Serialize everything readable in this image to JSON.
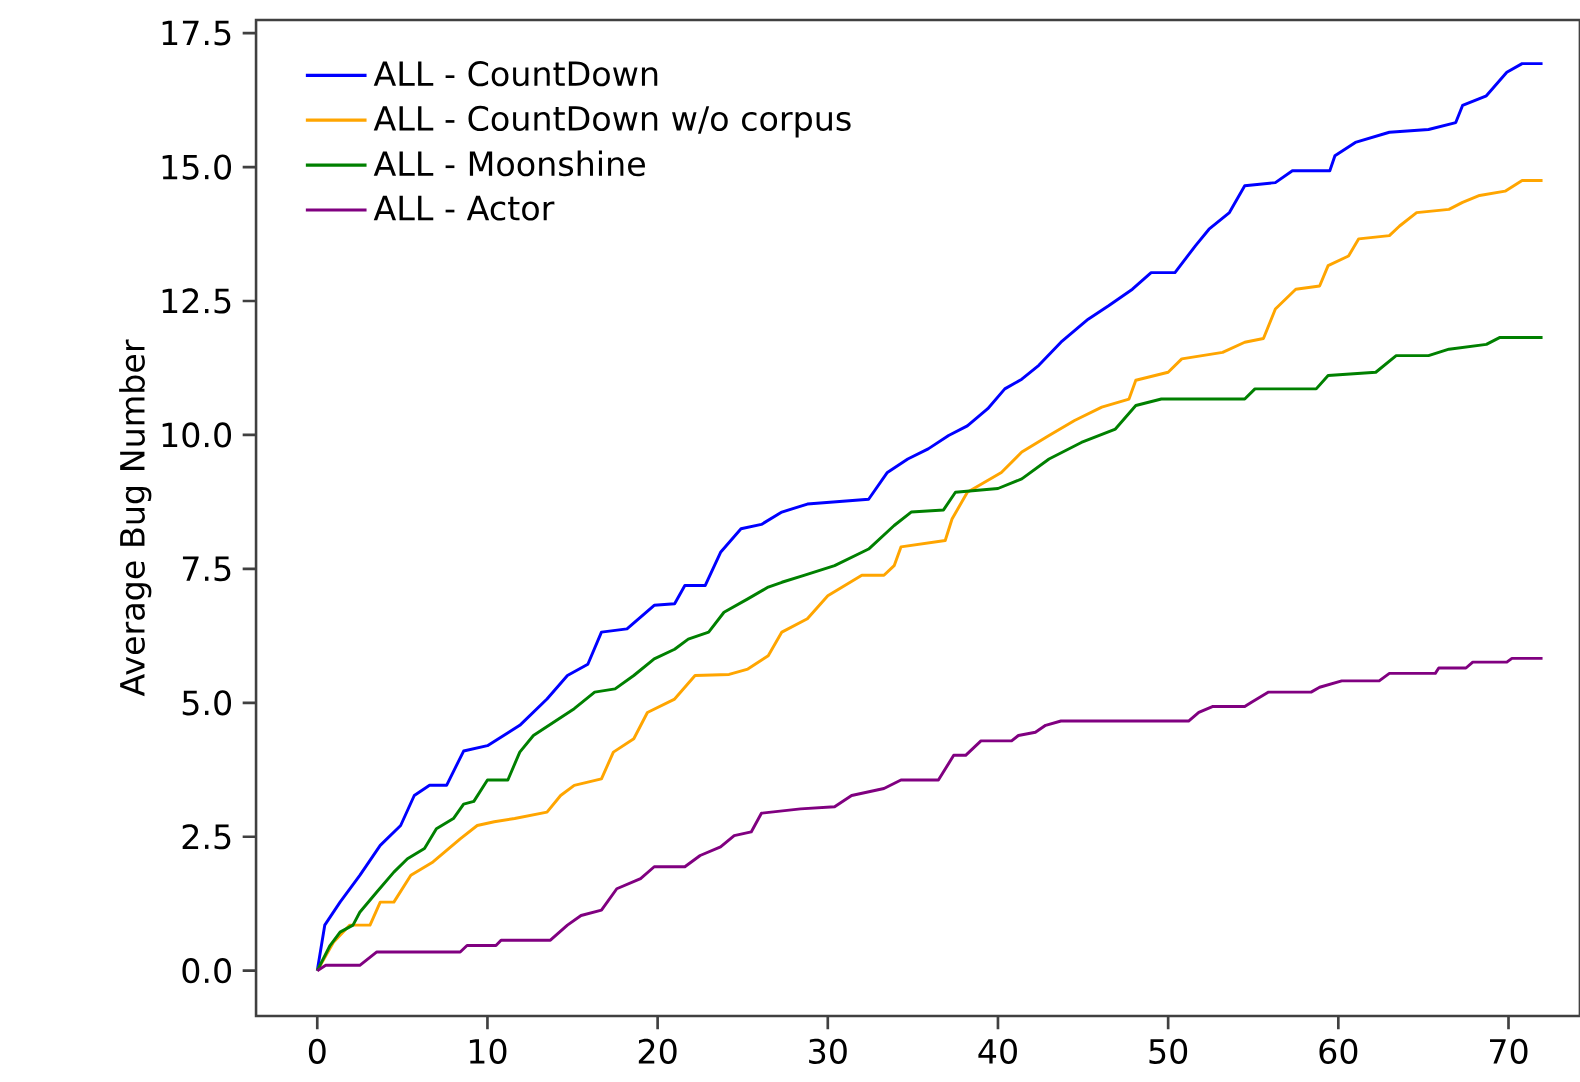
{
  "chart_data": {
    "type": "line",
    "ylabel": "Average Bug Number",
    "legend": "top left",
    "xlim": [
      -3.6,
      74.2
    ],
    "ylim": [
      -0.845,
      17.745
    ],
    "xticks": [
      0,
      10,
      20,
      30,
      40,
      50,
      60,
      70
    ],
    "yticks": [
      {
        "value": 0,
        "label": "0.0"
      },
      {
        "value": 2.5,
        "label": "2.5"
      },
      {
        "value": 5,
        "label": "5.0"
      },
      {
        "value": 7.5,
        "label": "7.5"
      },
      {
        "value": 10,
        "label": "10.0"
      },
      {
        "value": 12.5,
        "label": "12.5"
      },
      {
        "value": 15,
        "label": "15.0"
      },
      {
        "value": 17.5,
        "label": "17.5"
      }
    ],
    "series": [
      {
        "name": "ALL - CountDown",
        "color": "#0000ff",
        "x": [
          0,
          0.44,
          1.34,
          2.5,
          3.7,
          4.9,
          5.7,
          6.6,
          7.6,
          8.6,
          10,
          11.9,
          13.5,
          14.7,
          15.9,
          16.7,
          18.2,
          19.8,
          21,
          21.6,
          22.8,
          23.7,
          24.9,
          26.1,
          27.3,
          28.8,
          32.4,
          33.5,
          34.7,
          35.9,
          37.1,
          38.2,
          39.4,
          40.4,
          41.4,
          42.4,
          43.7,
          45.3,
          46.5,
          47.9,
          49,
          50.4,
          51.6,
          52.4,
          53.6,
          54.5,
          56.3,
          57.3,
          59.5,
          59.8,
          61,
          63,
          65.3,
          66.9,
          67.3,
          68.7,
          69.9,
          70.8,
          72
        ],
        "values": [
          0,
          0.85,
          1.28,
          1.78,
          2.34,
          2.71,
          3.27,
          3.46,
          3.46,
          4.1,
          4.2,
          4.58,
          5.07,
          5.51,
          5.72,
          6.32,
          6.38,
          6.82,
          6.85,
          7.19,
          7.19,
          7.81,
          8.25,
          8.33,
          8.56,
          8.71,
          8.8,
          9.3,
          9.55,
          9.74,
          9.99,
          10.17,
          10.49,
          10.86,
          11.04,
          11.3,
          11.73,
          12.16,
          12.41,
          12.72,
          13.03,
          13.03,
          13.53,
          13.84,
          14.15,
          14.65,
          14.71,
          14.93,
          14.93,
          15.21,
          15.46,
          15.65,
          15.7,
          15.83,
          16.15,
          16.33,
          16.77,
          16.93,
          16.93
        ]
      },
      {
        "name": "ALL - CountDown w/o corpus",
        "color": "#ffa500",
        "x": [
          0,
          0.95,
          1.9,
          3.1,
          3.7,
          4.5,
          5.5,
          6.8,
          8.4,
          9.4,
          10.4,
          11.6,
          13.5,
          14.3,
          15.1,
          16.7,
          17.4,
          18.6,
          19.4,
          21,
          22.2,
          24.2,
          25.3,
          26.5,
          27.3,
          28.8,
          30,
          32,
          33.3,
          33.9,
          34.3,
          36.9,
          37.3,
          38.2,
          40.2,
          41.4,
          43,
          44.5,
          46.1,
          47.7,
          48.1,
          50,
          50.8,
          53.2,
          54.5,
          55.6,
          56.3,
          57.5,
          58.9,
          59.4,
          60.6,
          61.2,
          63,
          63.6,
          64.6,
          66.5,
          67.3,
          68.3,
          69.8,
          70.8,
          72
        ],
        "values": [
          0,
          0.53,
          0.85,
          0.85,
          1.28,
          1.28,
          1.78,
          2.03,
          2.46,
          2.71,
          2.78,
          2.84,
          2.96,
          3.27,
          3.46,
          3.58,
          4.08,
          4.33,
          4.82,
          5.07,
          5.51,
          5.53,
          5.63,
          5.88,
          6.32,
          6.57,
          7.0,
          7.38,
          7.38,
          7.56,
          7.91,
          8.03,
          8.43,
          8.93,
          9.3,
          9.68,
          9.99,
          10.27,
          10.52,
          10.67,
          11.02,
          11.17,
          11.42,
          11.54,
          11.73,
          11.8,
          12.35,
          12.72,
          12.78,
          13.16,
          13.34,
          13.66,
          13.72,
          13.9,
          14.15,
          14.21,
          14.34,
          14.47,
          14.55,
          14.75,
          14.75
        ]
      },
      {
        "name": "ALL - Moonshine",
        "color": "#008000",
        "x": [
          0,
          0.75,
          1.34,
          2.1,
          2.5,
          3.5,
          4.5,
          5.3,
          6.3,
          7,
          8,
          8.6,
          9.2,
          10,
          11.2,
          11.9,
          12.7,
          13.9,
          15.1,
          16.3,
          17.5,
          18.6,
          19.8,
          21,
          21.8,
          23,
          23.9,
          25.3,
          26.5,
          27.3,
          28.6,
          30.4,
          32.4,
          33.9,
          34.9,
          36.8,
          37.5,
          40,
          41.4,
          43,
          44.9,
          46.9,
          48.1,
          49.6,
          54.5,
          55.1,
          58.7,
          59.4,
          62.2,
          63.4,
          65.3,
          66.5,
          68.7,
          69.5,
          72
        ],
        "values": [
          0,
          0.47,
          0.72,
          0.85,
          1.09,
          1.47,
          1.84,
          2.09,
          2.28,
          2.65,
          2.84,
          3.11,
          3.16,
          3.56,
          3.56,
          4.08,
          4.39,
          4.64,
          4.89,
          5.2,
          5.26,
          5.51,
          5.82,
          6.0,
          6.19,
          6.32,
          6.69,
          6.94,
          7.16,
          7.25,
          7.38,
          7.56,
          7.87,
          8.31,
          8.56,
          8.6,
          8.93,
          9.0,
          9.18,
          9.55,
          9.86,
          10.11,
          10.55,
          10.67,
          10.67,
          10.86,
          10.86,
          11.11,
          11.17,
          11.48,
          11.48,
          11.6,
          11.69,
          11.82,
          11.82
        ]
      },
      {
        "name": "ALL - Actor",
        "color": "#800080",
        "x": [
          0,
          0.5,
          2.5,
          3.5,
          8.4,
          8.8,
          10.5,
          10.8,
          13.7,
          14.7,
          15.5,
          16.7,
          17.6,
          19,
          19.8,
          21.6,
          22.5,
          23.7,
          24.5,
          25.5,
          26.1,
          28.4,
          30.4,
          31.4,
          33.3,
          34.3,
          36.5,
          37.4,
          38.1,
          39,
          40.8,
          41.2,
          42.2,
          42.8,
          43.7,
          51.2,
          51.8,
          52.6,
          54.5,
          54.9,
          55.9,
          58.4,
          58.9,
          60.2,
          62.4,
          63,
          65.7,
          65.9,
          67.5,
          67.9,
          69.9,
          70.2,
          72
        ],
        "values": [
          0,
          0.1,
          0.1,
          0.35,
          0.35,
          0.47,
          0.47,
          0.57,
          0.57,
          0.85,
          1.03,
          1.13,
          1.53,
          1.72,
          1.94,
          1.94,
          2.15,
          2.31,
          2.52,
          2.59,
          2.94,
          3.02,
          3.06,
          3.27,
          3.4,
          3.56,
          3.56,
          4.02,
          4.02,
          4.29,
          4.29,
          4.39,
          4.45,
          4.58,
          4.66,
          4.66,
          4.82,
          4.93,
          4.93,
          5.01,
          5.2,
          5.2,
          5.29,
          5.41,
          5.41,
          5.55,
          5.55,
          5.65,
          5.65,
          5.76,
          5.76,
          5.83,
          5.83
        ]
      }
    ]
  }
}
